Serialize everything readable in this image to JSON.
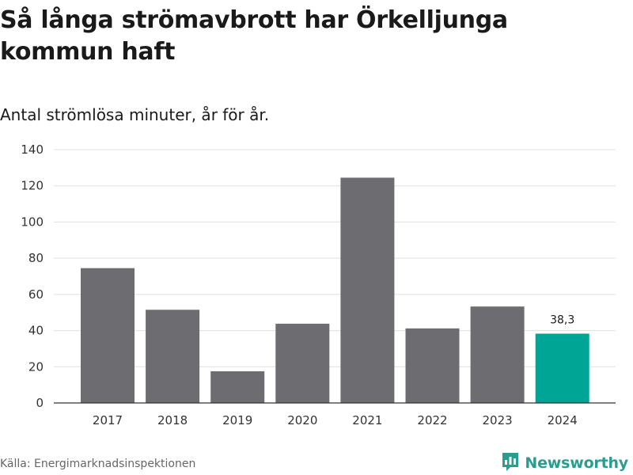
{
  "title": "Så långa strömavbrott har Örkelljunga kommun haft",
  "subtitle": "Antal strömlösa minuter, år för år.",
  "source": "Källa: Energimarknadsinspektionen",
  "brand": "Newsworthy",
  "colors": {
    "bar": "#6d6c71",
    "highlight": "#00a596",
    "grid": "#e0e0e0",
    "axis": "#333333",
    "brand": "#2a9d8f"
  },
  "chart_data": {
    "type": "bar",
    "title": "Så långa strömavbrott har Örkelljunga kommun haft",
    "subtitle": "Antal strömlösa minuter, år för år.",
    "xlabel": "",
    "ylabel": "",
    "categories": [
      "2017",
      "2018",
      "2019",
      "2020",
      "2021",
      "2022",
      "2023",
      "2024"
    ],
    "values": [
      74.5,
      51.5,
      17.5,
      43.8,
      124.5,
      41.2,
      53.3,
      38.3
    ],
    "highlight_index": 7,
    "data_labels": [
      {
        "index": 7,
        "text": "38,3"
      }
    ],
    "yticks": [
      0,
      20,
      40,
      60,
      80,
      100,
      120,
      140
    ],
    "ylim": [
      0,
      140
    ],
    "grid": true,
    "legend": "none"
  }
}
